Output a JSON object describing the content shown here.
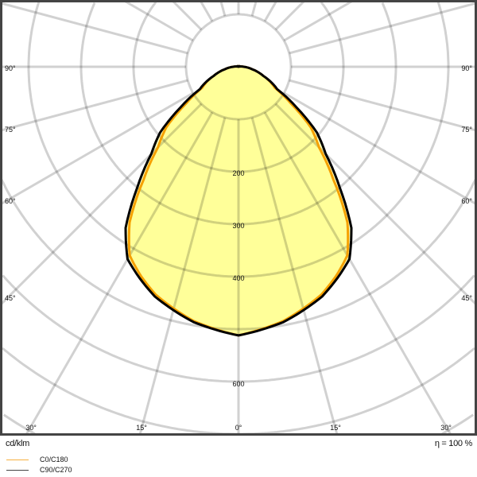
{
  "chart_data": {
    "type": "polar",
    "unit_label": "cd/klm",
    "efficiency_label": "η = 100 %",
    "radial_tick_labels": [
      "200",
      "300",
      "400",
      "600"
    ],
    "radial_ticks": [
      200,
      300,
      400,
      600
    ],
    "radial_grid_step": 100,
    "angle_grid_step_deg": 15,
    "angle_labels_left": [
      "90°",
      "75°",
      "60°",
      "45°"
    ],
    "angle_labels_right": [
      "90°",
      "75°",
      "60°",
      "45°"
    ],
    "angle_labels_bottom": [
      "30°",
      "15°",
      "0°",
      "15°",
      "30°"
    ],
    "grid": true,
    "series": [
      {
        "name": "C0/C180",
        "color": "#f5a000",
        "angles": [
          0,
          10,
          20,
          25,
          30,
          35,
          40,
          45,
          50,
          55,
          60,
          65,
          70,
          80,
          90,
          100,
          180
        ],
        "values": [
          512,
          492,
          462,
          440,
          415,
          362,
          282,
          217,
          180,
          122,
          80,
          66,
          50,
          26,
          10,
          3,
          0
        ]
      },
      {
        "name": "C90/C270",
        "color": "#000000",
        "angles": [
          0,
          10,
          20,
          25,
          30,
          35,
          40,
          45,
          50,
          55,
          60,
          65,
          70,
          80,
          90,
          100,
          180
        ],
        "values": [
          512,
          494,
          466,
          445,
          423,
          375,
          300,
          235,
          195,
          135,
          85,
          68,
          50,
          26,
          10,
          3,
          0
        ]
      }
    ],
    "fill_color": "#ffff80",
    "legend": [
      "C0/C180",
      "C90/C270"
    ],
    "legend_placement": "bottom-left"
  }
}
